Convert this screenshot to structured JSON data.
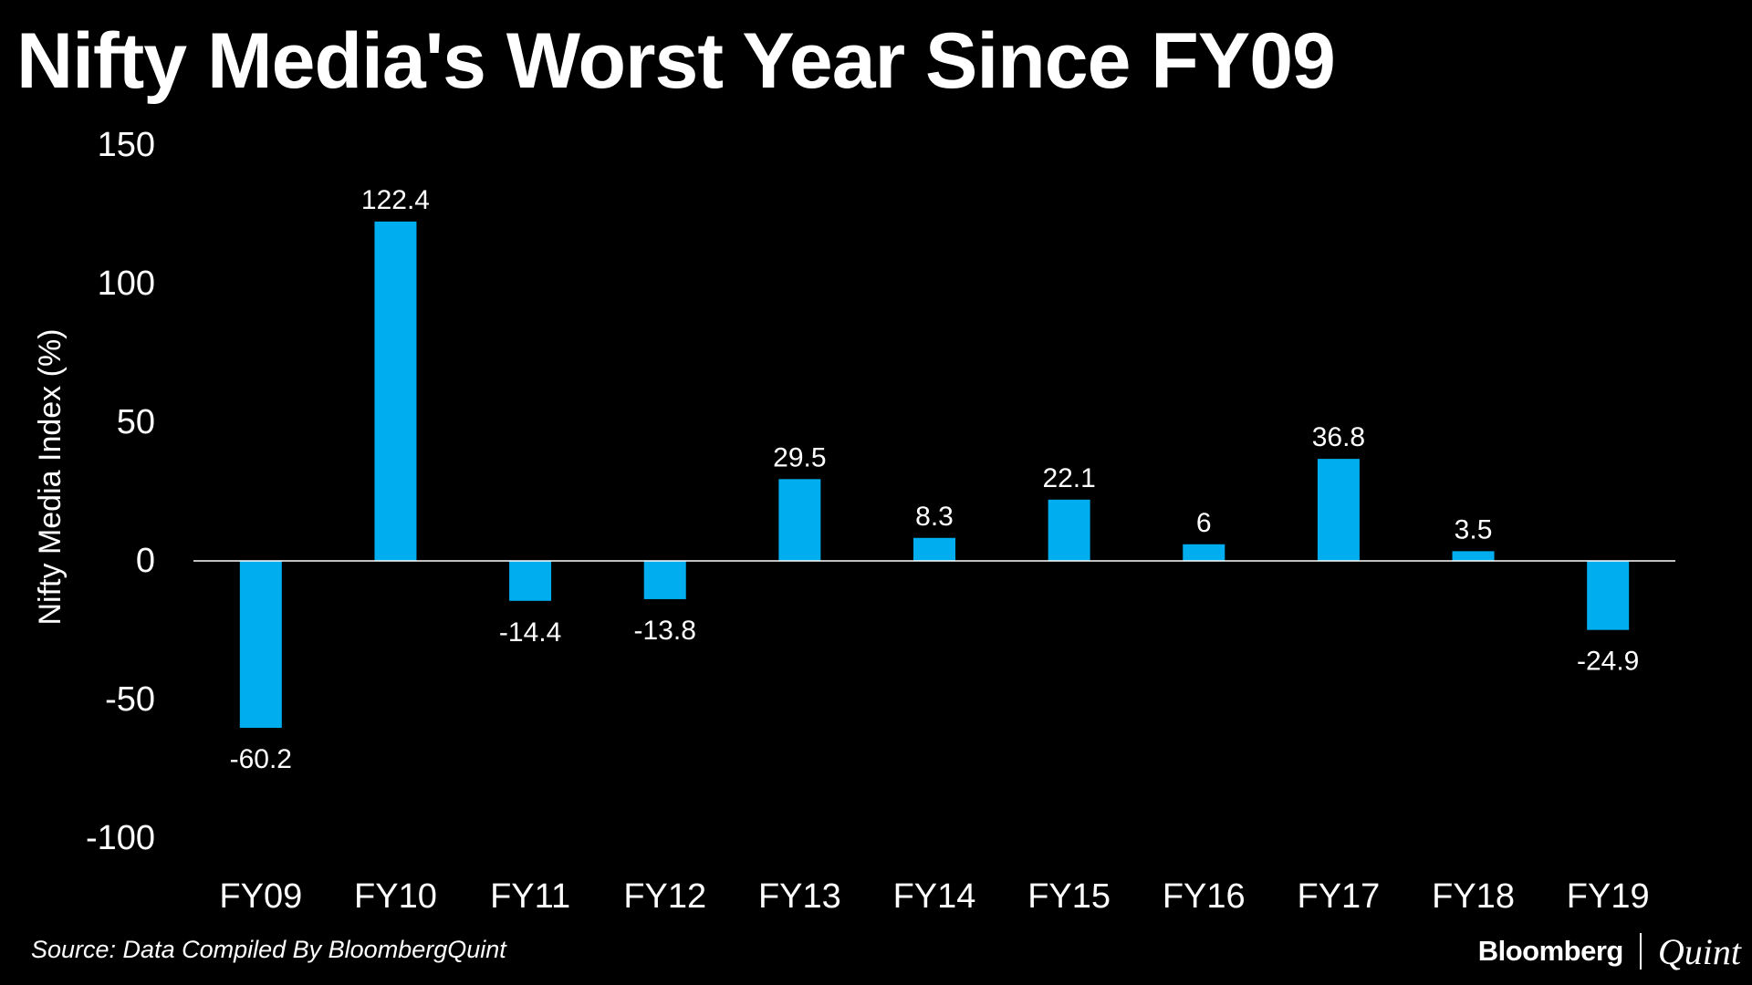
{
  "header": {
    "title": "Nifty Media's Worst Year Since FY09"
  },
  "footer": {
    "source": "Source: Data Compiled By BloombergQuint",
    "brand_primary": "Bloomberg",
    "brand_secondary": "Quint"
  },
  "colors": {
    "background": "#000000",
    "bar": "#00AEEF",
    "text": "#FFFFFF",
    "axis": "#FFFFFF"
  },
  "chart_data": {
    "type": "bar",
    "title": "Nifty Media's Worst Year Since FY09",
    "xlabel": "",
    "ylabel": "Nifty Media Index (%)",
    "categories": [
      "FY09",
      "FY10",
      "FY11",
      "FY12",
      "FY13",
      "FY14",
      "FY15",
      "FY16",
      "FY17",
      "FY18",
      "FY19"
    ],
    "values": [
      -60.2,
      122.4,
      -14.4,
      -13.8,
      29.5,
      8.3,
      22.1,
      6,
      36.8,
      3.5,
      -24.9
    ],
    "data_labels": [
      "-60.2",
      "122.4",
      "-14.4",
      "-13.8",
      "29.5",
      "8.3",
      "22.1",
      "6",
      "36.8",
      "3.5",
      "-24.9"
    ],
    "ylim": [
      -100,
      150
    ],
    "yticks": [
      150,
      100,
      50,
      0,
      -50,
      -100
    ],
    "ytick_labels": [
      "150",
      "100",
      "50",
      "0",
      "-50",
      "-100"
    ],
    "grid": false,
    "legend": "none"
  }
}
